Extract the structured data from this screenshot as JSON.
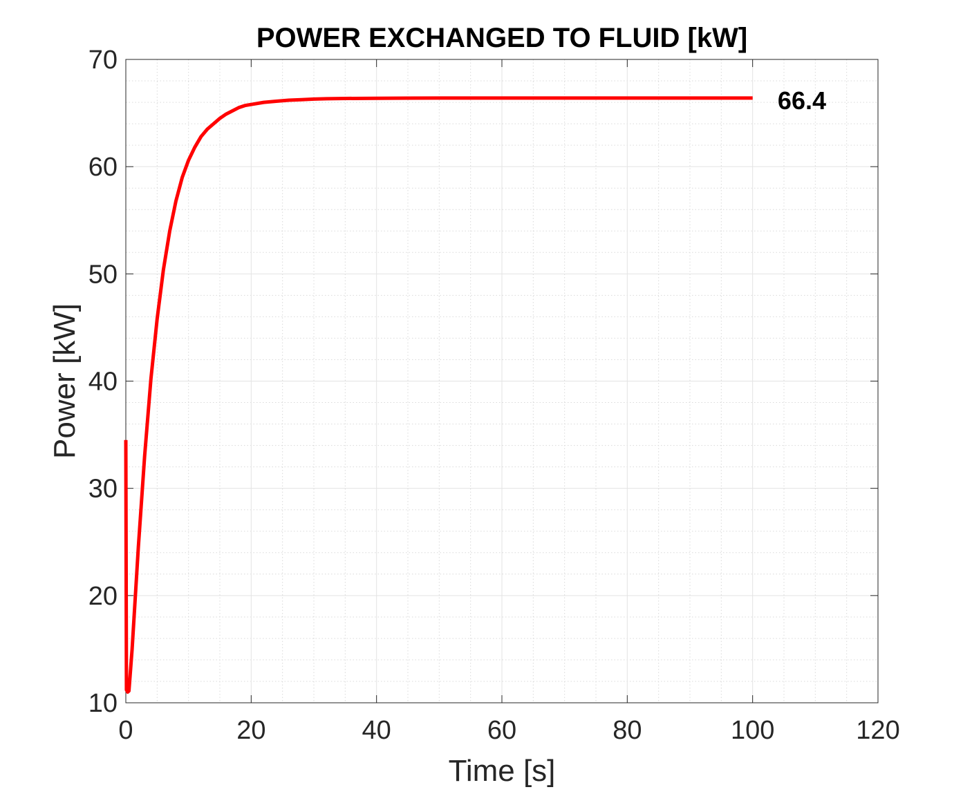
{
  "chart_data": {
    "type": "line",
    "title": "POWER EXCHANGED TO FLUID [kW]",
    "xlabel": "Time [s]",
    "ylabel": "Power [kW]",
    "xlim": [
      0,
      120
    ],
    "ylim": [
      10,
      70
    ],
    "xticks": [
      "0",
      "20",
      "40",
      "60",
      "80",
      "100",
      "120"
    ],
    "yticks": [
      "10",
      "20",
      "30",
      "40",
      "50",
      "60",
      "70"
    ],
    "grid": true,
    "minor_grid": true,
    "series": [
      {
        "color": "#ff0000",
        "x": [
          0,
          0.1,
          0.3,
          0.5,
          1,
          2,
          3,
          4,
          5,
          6,
          7,
          8,
          9,
          10,
          11,
          12,
          13,
          14,
          15,
          16,
          17,
          18,
          19,
          20,
          22,
          24,
          26,
          28,
          30,
          32,
          35,
          40,
          45,
          50,
          60,
          70,
          80,
          90,
          100
        ],
        "y": [
          34.5,
          11.2,
          11.0,
          11.1,
          15.0,
          24.5,
          33.0,
          40.2,
          45.8,
          50.4,
          54.0,
          56.8,
          59.0,
          60.6,
          61.8,
          62.8,
          63.5,
          64.0,
          64.5,
          64.9,
          65.2,
          65.5,
          65.7,
          65.8,
          66.0,
          66.1,
          66.2,
          66.25,
          66.3,
          66.33,
          66.36,
          66.38,
          66.39,
          66.4,
          66.4,
          66.4,
          66.4,
          66.4,
          66.4
        ]
      }
    ],
    "annotations": [
      {
        "text": "66.4",
        "x": 104,
        "y": 66.4
      }
    ]
  }
}
